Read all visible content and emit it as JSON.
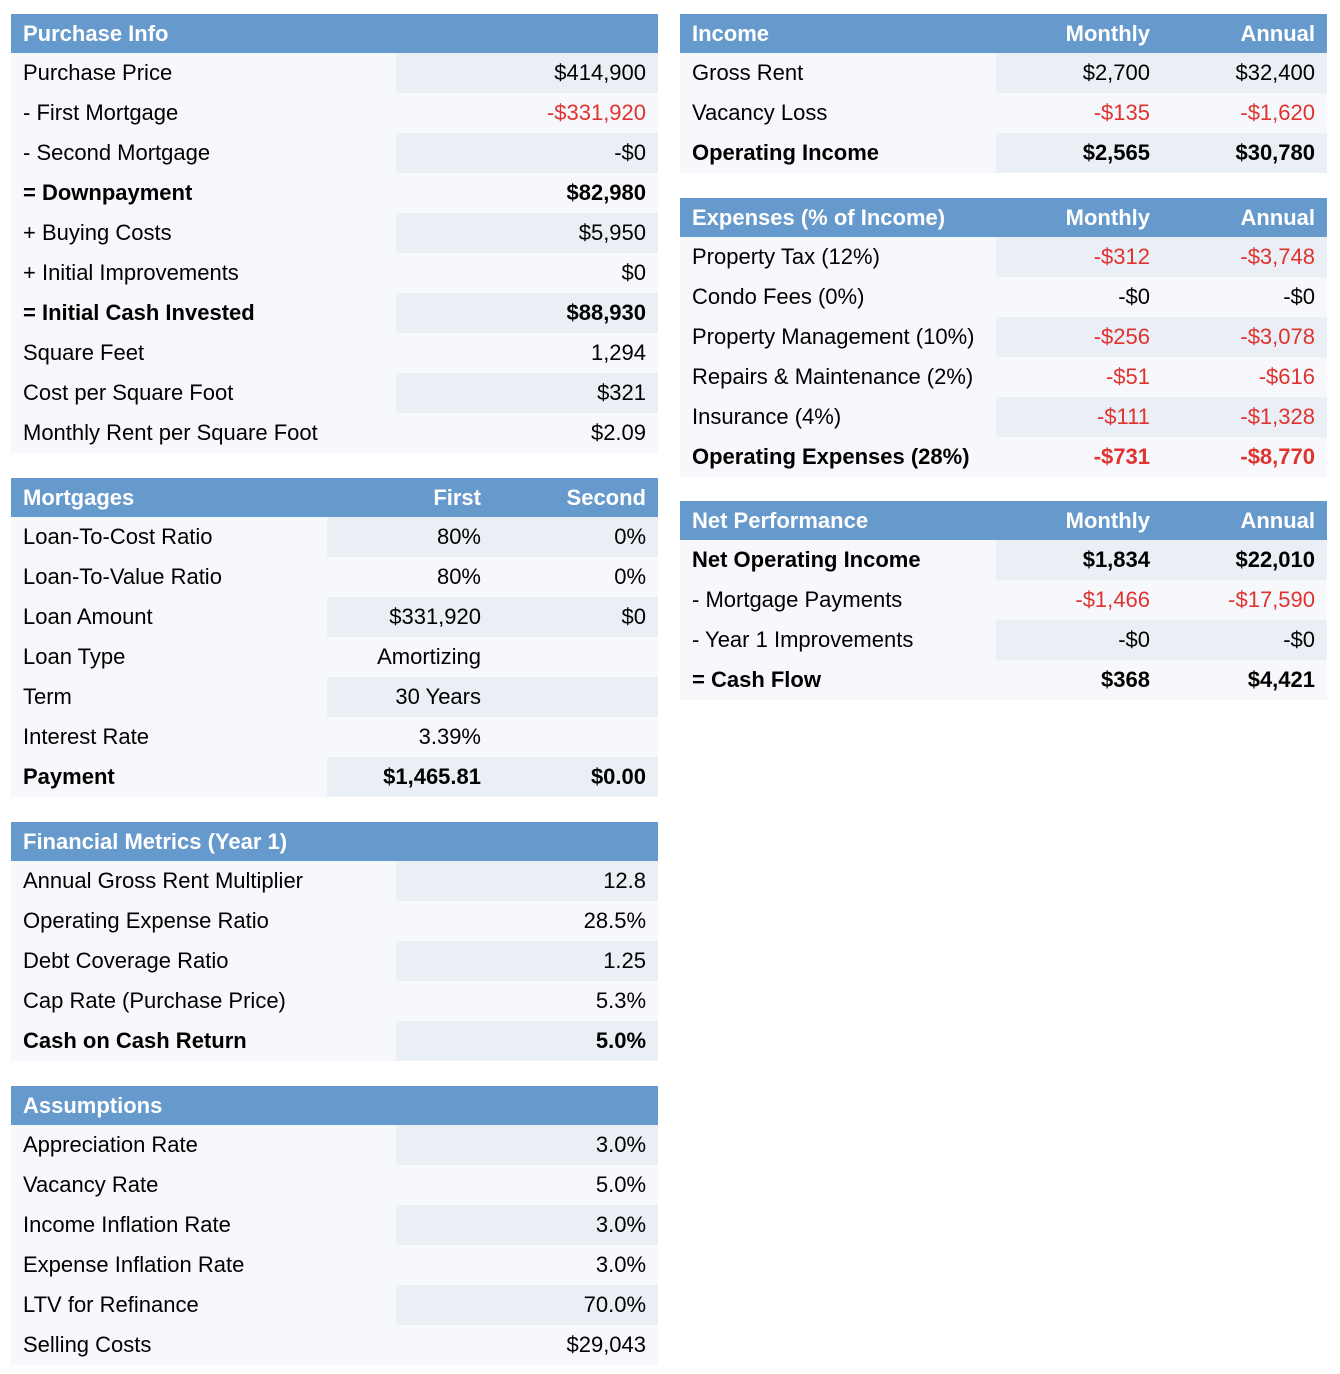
{
  "purchase": {
    "title": "Purchase Info",
    "rows": [
      {
        "label": "Purchase Price",
        "value": "$414,900"
      },
      {
        "label": "- First Mortgage",
        "value": "-$331,920"
      },
      {
        "label": "- Second Mortgage",
        "value": "-$0"
      },
      {
        "label": "= Downpayment",
        "value": "$82,980"
      },
      {
        "label": "+ Buying Costs",
        "value": "$5,950"
      },
      {
        "label": "+ Initial Improvements",
        "value": "$0"
      },
      {
        "label": "= Initial Cash Invested",
        "value": "$88,930"
      },
      {
        "label": "Square Feet",
        "value": "1,294"
      },
      {
        "label": "Cost per Square Foot",
        "value": "$321"
      },
      {
        "label": "Monthly Rent per Square Foot",
        "value": "$2.09"
      }
    ]
  },
  "mortgages": {
    "title": "Mortgages",
    "col1": "First",
    "col2": "Second",
    "rows": [
      {
        "label": "Loan-To-Cost Ratio",
        "first": "80%",
        "second": "0%"
      },
      {
        "label": "Loan-To-Value Ratio",
        "first": "80%",
        "second": "0%"
      },
      {
        "label": "Loan Amount",
        "first": "$331,920",
        "second": "$0"
      },
      {
        "label": "Loan Type",
        "first": "Amortizing",
        "second": ""
      },
      {
        "label": "Term",
        "first": "30 Years",
        "second": ""
      },
      {
        "label": "Interest Rate",
        "first": "3.39%",
        "second": ""
      },
      {
        "label": "Payment",
        "first": "$1,465.81",
        "second": "$0.00"
      }
    ]
  },
  "metrics": {
    "title": "Financial Metrics (Year 1)",
    "rows": [
      {
        "label": "Annual Gross Rent Multiplier",
        "value": "12.8"
      },
      {
        "label": "Operating Expense Ratio",
        "value": "28.5%"
      },
      {
        "label": "Debt Coverage Ratio",
        "value": "1.25"
      },
      {
        "label": "Cap Rate (Purchase Price)",
        "value": "5.3%"
      },
      {
        "label": "Cash on Cash Return",
        "value": "5.0%"
      }
    ]
  },
  "assumptions": {
    "title": "Assumptions",
    "rows": [
      {
        "label": "Appreciation Rate",
        "value": "3.0%"
      },
      {
        "label": "Vacancy Rate",
        "value": "5.0%"
      },
      {
        "label": "Income Inflation Rate",
        "value": "3.0%"
      },
      {
        "label": "Expense Inflation Rate",
        "value": "3.0%"
      },
      {
        "label": "LTV for Refinance",
        "value": "70.0%"
      },
      {
        "label": "Selling Costs",
        "value": "$29,043"
      }
    ]
  },
  "income": {
    "title": "Income",
    "col1": "Monthly",
    "col2": "Annual",
    "rows": [
      {
        "label": "Gross Rent",
        "monthly": "$2,700",
        "annual": "$32,400"
      },
      {
        "label": "Vacancy Loss",
        "monthly": "-$135",
        "annual": "-$1,620"
      },
      {
        "label": "Operating Income",
        "monthly": "$2,565",
        "annual": "$30,780"
      }
    ]
  },
  "expenses": {
    "title": "Expenses (% of Income)",
    "col1": "Monthly",
    "col2": "Annual",
    "rows": [
      {
        "label": "Property Tax (12%)",
        "monthly": "-$312",
        "annual": "-$3,748"
      },
      {
        "label": "Condo Fees (0%)",
        "monthly": "-$0",
        "annual": "-$0"
      },
      {
        "label": "Property Management (10%)",
        "monthly": "-$256",
        "annual": "-$3,078"
      },
      {
        "label": "Repairs & Maintenance (2%)",
        "monthly": "-$51",
        "annual": "-$616"
      },
      {
        "label": "Insurance (4%)",
        "monthly": "-$111",
        "annual": "-$1,328"
      },
      {
        "label": "Operating Expenses (28%)",
        "monthly": "-$731",
        "annual": "-$8,770"
      }
    ]
  },
  "net": {
    "title": "Net Performance",
    "col1": "Monthly",
    "col2": "Annual",
    "rows": [
      {
        "label": "Net Operating Income",
        "monthly": "$1,834",
        "annual": "$22,010"
      },
      {
        "label": "- Mortgage Payments",
        "monthly": "-$1,466",
        "annual": "-$17,590"
      },
      {
        "label": "- Year 1 Improvements",
        "monthly": "-$0",
        "annual": "-$0"
      },
      {
        "label": "= Cash Flow",
        "monthly": "$368",
        "annual": "$4,421"
      }
    ]
  },
  "colors": {
    "header_bg": "#6699cc",
    "header_text": "#ffffff",
    "negative": "#e0322f",
    "cell_light": "#f6f8fb",
    "cell_shaded": "#eaeef5"
  }
}
